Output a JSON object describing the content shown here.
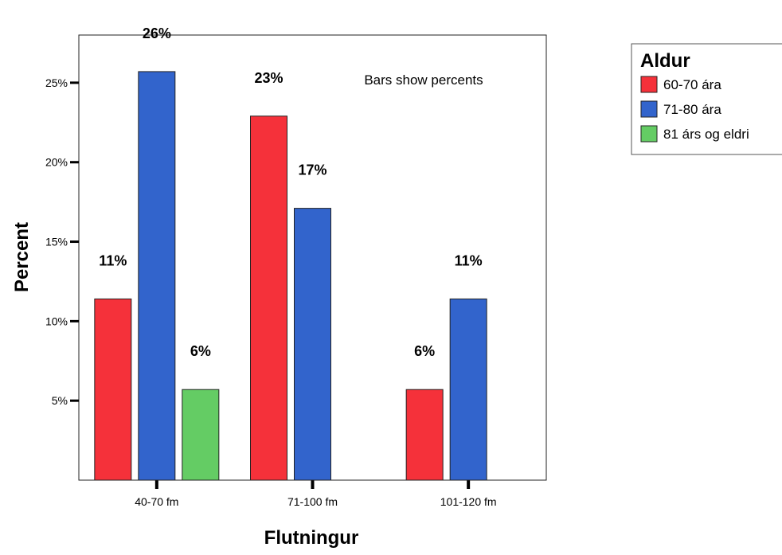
{
  "chart_data": {
    "type": "bar",
    "categories": [
      "40-70 fm",
      "71-100 fm",
      "101-120 fm"
    ],
    "series": [
      {
        "name": "60-70 ára",
        "color": "#f5313a",
        "values": [
          11.4,
          22.9,
          5.7
        ],
        "labels": [
          "11%",
          "23%",
          "6%"
        ]
      },
      {
        "name": "71-80 ára",
        "color": "#3264cc",
        "values": [
          25.7,
          17.1,
          11.4
        ],
        "labels": [
          "26%",
          "17%",
          "11%"
        ]
      },
      {
        "name": "81 árs og eldri",
        "color": "#64cc64",
        "values": [
          5.7,
          null,
          null
        ],
        "labels": [
          "6%",
          "",
          ""
        ]
      }
    ],
    "xlabel": "Flutningur",
    "ylabel": "Percent",
    "ylim": [
      0,
      28
    ],
    "yticks": [
      5,
      10,
      15,
      20,
      25
    ],
    "ytick_labels": [
      "5%",
      "10%",
      "15%",
      "20%",
      "25%"
    ],
    "legend": {
      "title": "Aldur",
      "placement": "right"
    },
    "annotation": "Bars show percents",
    "grid": false
  }
}
